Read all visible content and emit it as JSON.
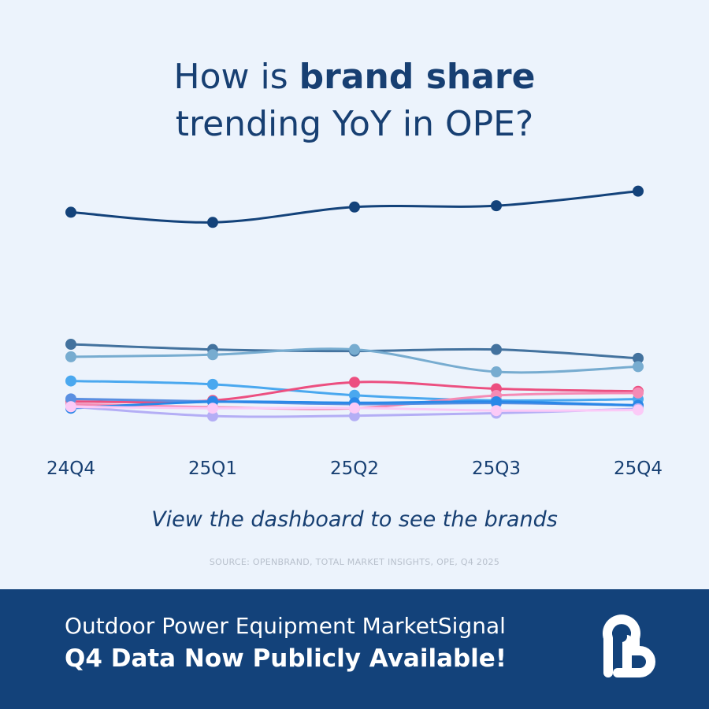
{
  "header": {
    "title_prefix": "How is ",
    "title_bold": "brand share",
    "title_line2": "trending YoY in OPE?"
  },
  "cta": "View the dashboard to see the brands",
  "source": "SOURCE: OPENBRAND, TOTAL MARKET INSIGHTS, OPE, Q4 2025",
  "banner": {
    "line1": "Outdoor Power Equipment MarketSignal",
    "line2": "Q4 Data Now Publicly Available!",
    "logo": "openbrand-logo-icon"
  },
  "chart_data": {
    "type": "line",
    "categories": [
      "24Q4",
      "25Q1",
      "25Q2",
      "25Q3",
      "25Q4"
    ],
    "ylim": [
      0,
      100
    ],
    "grid": false,
    "legend": "none",
    "series": [
      {
        "color": "#13427a",
        "values": [
          82.0,
          78.1,
          84.0,
          84.5,
          90.1
        ]
      },
      {
        "color": "#43729e",
        "values": [
          31.2,
          29.2,
          28.6,
          29.2,
          25.8
        ]
      },
      {
        "color": "#77acd0",
        "values": [
          26.4,
          27.2,
          29.2,
          20.6,
          22.6
        ]
      },
      {
        "color": "#4aa8ef",
        "values": [
          17.1,
          15.8,
          11.6,
          9.6,
          10.1
        ]
      },
      {
        "color": "#ec4f80",
        "values": [
          9.2,
          9.6,
          16.6,
          14.1,
          13.1
        ]
      },
      {
        "color": "#f58bb5",
        "values": [
          8.2,
          7.0,
          6.6,
          11.5,
          12.5
        ]
      },
      {
        "color": "#5a8fe1",
        "values": [
          10.2,
          9.2,
          8.2,
          8.6,
          7.7
        ]
      },
      {
        "color": "#2a88e8",
        "values": [
          6.6,
          9.1,
          8.7,
          9.1,
          7.7
        ]
      },
      {
        "color": "#b4aef5",
        "values": [
          7.2,
          3.6,
          3.7,
          4.7,
          6.4
        ]
      },
      {
        "color": "#fbcaf7",
        "values": [
          7.2,
          6.6,
          6.7,
          5.7,
          5.9
        ]
      }
    ]
  }
}
